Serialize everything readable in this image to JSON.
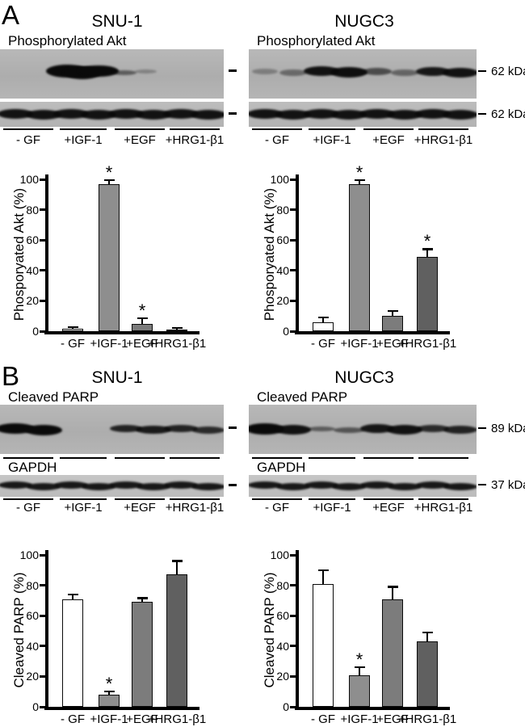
{
  "panel_a": {
    "label": "A",
    "left": {
      "title": "SNU-1",
      "blot_label": "Phosphorylated Akt"
    },
    "right": {
      "title": "NUGC3",
      "blot_label": "Phosphorylated Akt"
    },
    "markers": [
      "62 kDa",
      "62 kDa"
    ],
    "lane_labels": [
      "- GF",
      "+IGF-1",
      "+EGF",
      "+HRG1-β1"
    ]
  },
  "panel_b": {
    "label": "B",
    "left": {
      "title": "SNU-1",
      "blot_label": "Cleaved PARP",
      "control_label": "GAPDH"
    },
    "right": {
      "title": "NUGC3",
      "blot_label": "Cleaved PARP",
      "control_label": "GAPDH"
    },
    "markers": [
      "89 kDa",
      "37 kDa"
    ],
    "lane_labels": [
      "- GF",
      "+IGF-1",
      "+EGF",
      "+HRG1-β1"
    ]
  },
  "chart_data": [
    {
      "id": "akt_snu1",
      "panel": "A",
      "cell_line": "SNU-1",
      "type": "bar",
      "ylabel": "Phosporyated Akt (%)",
      "yticks": [
        0,
        20,
        40,
        60,
        80,
        100
      ],
      "ylim": [
        0,
        107
      ],
      "categories": [
        "- GF",
        "+IGF-1",
        "+EGF",
        "+HRG1-β1"
      ],
      "values": [
        1.5,
        97,
        5,
        1
      ],
      "errors": [
        1,
        2.5,
        3.5,
        1
      ],
      "significant": [
        false,
        true,
        true,
        false
      ],
      "sig_symbol": "*",
      "bar_colors": [
        "#ffffff",
        "#8e8e8e",
        "#7c7c7c",
        "#9a9a9a"
      ]
    },
    {
      "id": "akt_nugc3",
      "panel": "A",
      "cell_line": "NUGC3",
      "type": "bar",
      "ylabel": "Phosporyated Akt (%)",
      "yticks": [
        0,
        20,
        40,
        60,
        80,
        100
      ],
      "ylim": [
        0,
        107
      ],
      "categories": [
        "- GF",
        "+IGF-1",
        "+EGF",
        "+HRG1-β1"
      ],
      "values": [
        6,
        97,
        10,
        49
      ],
      "errors": [
        3,
        2.5,
        3.5,
        5
      ],
      "significant": [
        false,
        true,
        false,
        true
      ],
      "sig_symbol": "*",
      "bar_colors": [
        "#ffffff",
        "#8e8e8e",
        "#7c7c7c",
        "#606060"
      ]
    },
    {
      "id": "parp_snu1",
      "panel": "B",
      "cell_line": "SNU-1",
      "type": "bar",
      "ylabel": "Cleaved PARP (%)",
      "yticks": [
        0,
        20,
        40,
        60,
        80,
        100
      ],
      "ylim": [
        0,
        107
      ],
      "categories": [
        "- GF",
        "+IGF-1",
        "+EGF",
        "+HRG1-β1"
      ],
      "values": [
        71,
        8,
        69,
        87
      ],
      "errors": [
        3,
        2,
        2.5,
        9
      ],
      "significant": [
        false,
        true,
        false,
        false
      ],
      "sig_symbol": "*",
      "bar_colors": [
        "#ffffff",
        "#8e8e8e",
        "#7c7c7c",
        "#606060"
      ]
    },
    {
      "id": "parp_nugc3",
      "panel": "B",
      "cell_line": "NUGC3",
      "type": "bar",
      "ylabel": "Cleaved PARP (%)",
      "yticks": [
        0,
        20,
        40,
        60,
        80,
        100
      ],
      "ylim": [
        0,
        107
      ],
      "categories": [
        "- GF",
        "+IGF-1",
        "+EGF",
        "+HRG1-β1"
      ],
      "values": [
        81,
        21,
        71,
        43
      ],
      "errors": [
        9,
        5,
        8,
        6
      ],
      "significant": [
        false,
        true,
        false,
        false
      ],
      "sig_symbol": "*",
      "bar_colors": [
        "#ffffff",
        "#8e8e8e",
        "#7c7c7c",
        "#606060"
      ]
    }
  ],
  "blots": {
    "band_encoding": "[lane_center_fraction, width_px, height_px, intensity]",
    "a_snu1_pakt": [
      [
        0.3,
        52,
        16,
        1
      ],
      [
        0.37,
        46,
        16,
        1
      ],
      [
        0.44,
        50,
        14,
        1
      ],
      [
        0.555,
        30,
        6,
        0.5
      ],
      [
        0.65,
        27,
        5,
        0.28
      ]
    ],
    "a_snu1_total": [
      [
        0.07,
        44,
        12,
        0.95
      ],
      [
        0.195,
        44,
        12,
        0.95
      ],
      [
        0.318,
        44,
        12,
        0.95
      ],
      [
        0.44,
        44,
        12,
        0.95
      ],
      [
        0.563,
        44,
        12,
        0.95
      ],
      [
        0.686,
        44,
        12,
        0.95
      ],
      [
        0.809,
        44,
        12,
        0.95
      ],
      [
        0.93,
        44,
        12,
        0.95
      ]
    ],
    "a_nugc3_pakt": [
      [
        0.07,
        32,
        7,
        0.3
      ],
      [
        0.195,
        34,
        8,
        0.42
      ],
      [
        0.318,
        44,
        12,
        0.95
      ],
      [
        0.44,
        46,
        13,
        0.97
      ],
      [
        0.563,
        36,
        9,
        0.6
      ],
      [
        0.686,
        34,
        8,
        0.45
      ],
      [
        0.809,
        42,
        11,
        0.92
      ],
      [
        0.93,
        44,
        12,
        0.95
      ]
    ],
    "a_nugc3_total": [
      [
        0.07,
        44,
        12,
        0.95
      ],
      [
        0.195,
        44,
        12,
        0.95
      ],
      [
        0.318,
        44,
        12,
        0.95
      ],
      [
        0.44,
        44,
        12,
        0.95
      ],
      [
        0.563,
        44,
        12,
        0.95
      ],
      [
        0.686,
        44,
        12,
        0.95
      ],
      [
        0.809,
        44,
        12,
        0.95
      ],
      [
        0.93,
        44,
        12,
        0.95
      ]
    ],
    "b_snu1_parp": [
      [
        0.07,
        48,
        13,
        1
      ],
      [
        0.195,
        46,
        13,
        1
      ],
      [
        0.563,
        40,
        9,
        0.85
      ],
      [
        0.686,
        44,
        10,
        0.9
      ],
      [
        0.809,
        42,
        9,
        0.85
      ],
      [
        0.93,
        40,
        9,
        0.8
      ]
    ],
    "b_snu1_gapdh": [
      [
        0.07,
        42,
        9,
        0.92
      ],
      [
        0.195,
        42,
        9,
        0.92
      ],
      [
        0.318,
        42,
        9,
        0.92
      ],
      [
        0.44,
        42,
        9,
        0.92
      ],
      [
        0.563,
        42,
        9,
        0.92
      ],
      [
        0.686,
        42,
        9,
        0.92
      ],
      [
        0.809,
        42,
        9,
        0.92
      ],
      [
        0.93,
        42,
        9,
        0.92
      ]
    ],
    "b_nugc3_parp": [
      [
        0.07,
        48,
        14,
        1
      ],
      [
        0.195,
        44,
        12,
        0.95
      ],
      [
        0.318,
        34,
        6,
        0.5
      ],
      [
        0.44,
        38,
        7,
        0.55
      ],
      [
        0.563,
        42,
        11,
        0.92
      ],
      [
        0.686,
        44,
        12,
        0.95
      ],
      [
        0.809,
        40,
        9,
        0.8
      ],
      [
        0.93,
        42,
        10,
        0.85
      ]
    ],
    "b_nugc3_gapdh": [
      [
        0.07,
        42,
        9,
        0.92
      ],
      [
        0.195,
        42,
        9,
        0.92
      ],
      [
        0.318,
        42,
        9,
        0.92
      ],
      [
        0.44,
        42,
        9,
        0.92
      ],
      [
        0.563,
        42,
        9,
        0.92
      ],
      [
        0.686,
        42,
        9,
        0.92
      ],
      [
        0.809,
        42,
        9,
        0.92
      ],
      [
        0.93,
        42,
        9,
        0.92
      ]
    ]
  }
}
